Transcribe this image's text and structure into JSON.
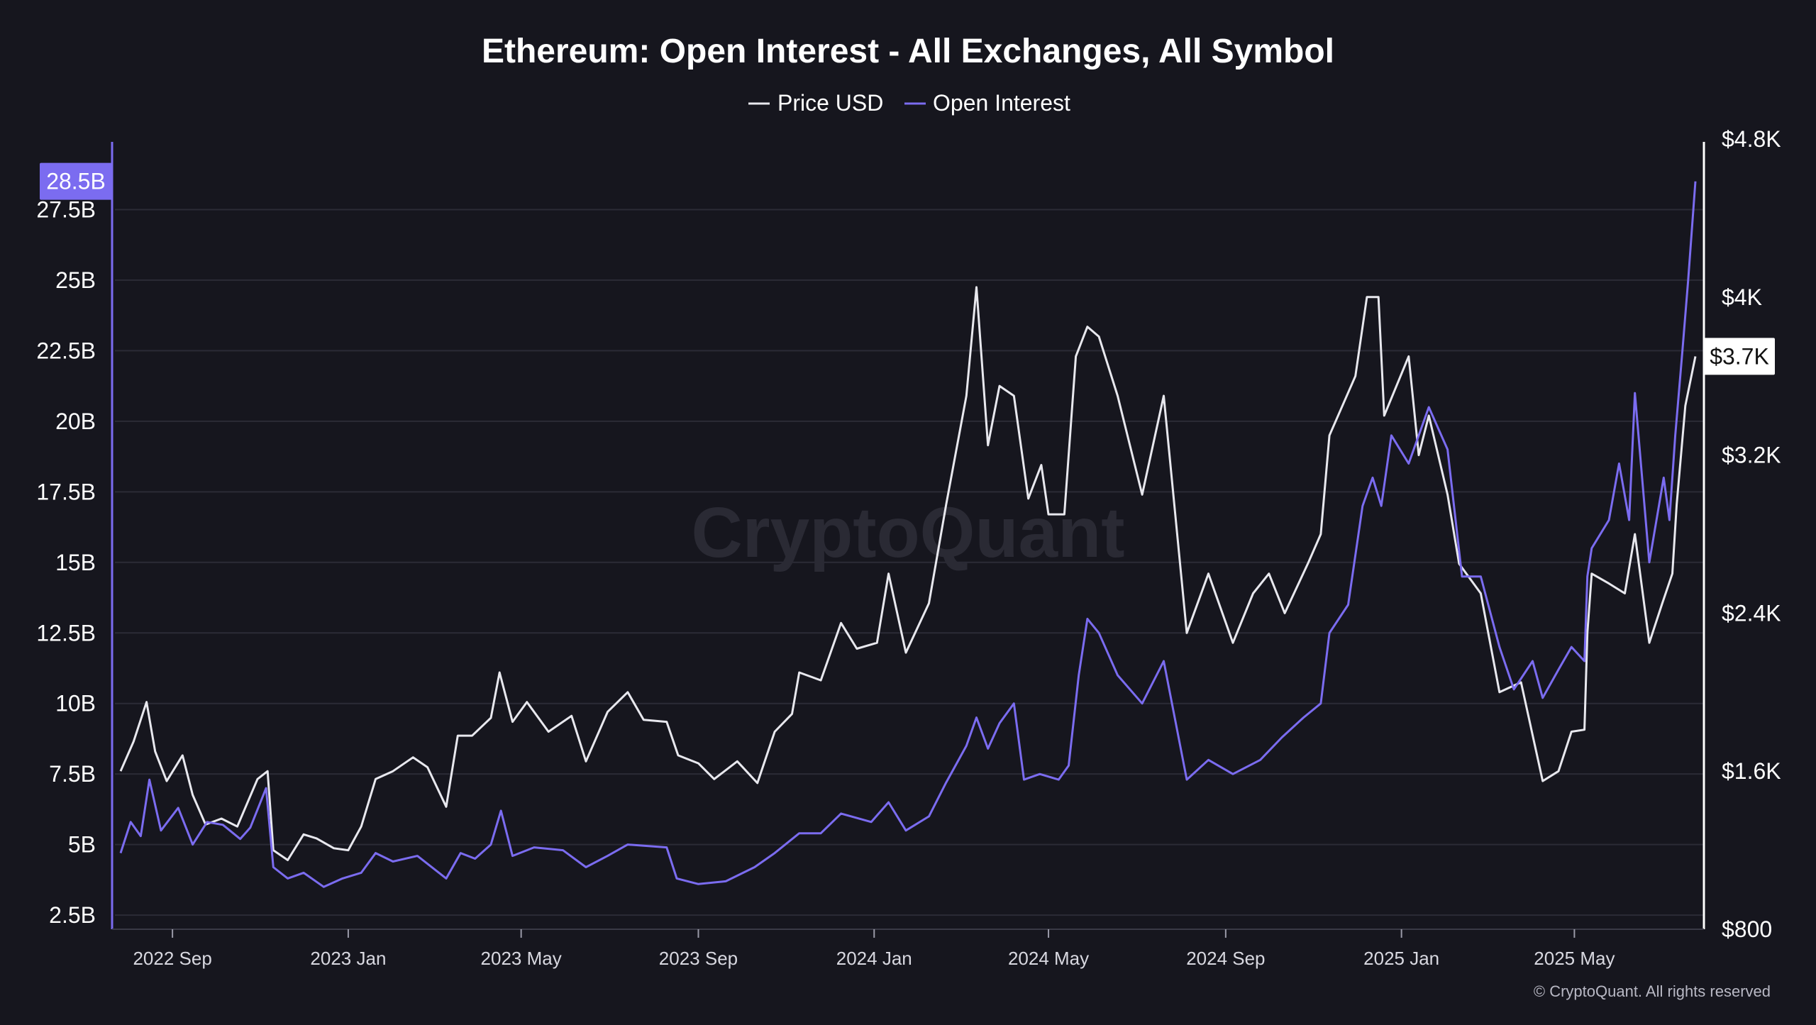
{
  "chart_data": {
    "type": "line",
    "title": "Ethereum: Open Interest - All Exchanges, All Symbol",
    "legend": {
      "placement": "top-center",
      "entries": [
        "Price USD",
        "Open Interest"
      ]
    },
    "watermark": "CryptoQuant",
    "copyright": "© CryptoQuant. All rights reserved",
    "colors": {
      "background": "#16161e",
      "grid": "#2b2b36",
      "price": "#e8e8ee",
      "open_interest": "#7b6cf0",
      "left_axis": "#7b6cf0",
      "right_axis": "#ffffff",
      "oi_badge_bg": "#7b6cf0",
      "price_badge_bg": "#ffffff"
    },
    "grid": true,
    "x_axis": {
      "range": [
        "2022-07-27",
        "2025-07-24"
      ],
      "ticks": [
        {
          "date": "2022-09-01",
          "label": "2022 Sep"
        },
        {
          "date": "2023-01-01",
          "label": "2023 Jan"
        },
        {
          "date": "2023-05-01",
          "label": "2023 May"
        },
        {
          "date": "2023-09-01",
          "label": "2023 Sep"
        },
        {
          "date": "2024-01-01",
          "label": "2024 Jan"
        },
        {
          "date": "2024-05-01",
          "label": "2024 May"
        },
        {
          "date": "2024-09-01",
          "label": "2024 Sep"
        },
        {
          "date": "2025-01-01",
          "label": "2025 Jan"
        },
        {
          "date": "2025-05-01",
          "label": "2025 May"
        }
      ]
    },
    "y_left": {
      "unit": "USD (billions)",
      "range": [
        2.0,
        30.0
      ],
      "ticks": [
        {
          "value": 2.5,
          "label": "2.5B"
        },
        {
          "value": 5,
          "label": "5B"
        },
        {
          "value": 7.5,
          "label": "7.5B"
        },
        {
          "value": 10,
          "label": "10B"
        },
        {
          "value": 12.5,
          "label": "12.5B"
        },
        {
          "value": 15,
          "label": "15B"
        },
        {
          "value": 17.5,
          "label": "17.5B"
        },
        {
          "value": 20,
          "label": "20B"
        },
        {
          "value": 22.5,
          "label": "22.5B"
        },
        {
          "value": 25,
          "label": "25B"
        },
        {
          "value": 27.5,
          "label": "27.5B"
        }
      ],
      "current_label": "28.5B",
      "current_value": 28.5
    },
    "y_right": {
      "unit": "USD",
      "range": [
        800,
        4800
      ],
      "ticks": [
        {
          "value": 800,
          "label": "$800"
        },
        {
          "value": 1600,
          "label": "$1.6K"
        },
        {
          "value": 2400,
          "label": "$2.4K"
        },
        {
          "value": 3200,
          "label": "$3.2K"
        },
        {
          "value": 4000,
          "label": "$4K"
        },
        {
          "value": 4800,
          "label": "$4.8K"
        }
      ],
      "current_label": "$3.7K",
      "current_value": 3700
    },
    "series": [
      {
        "name": "Price USD",
        "axis": "right",
        "points": [
          [
            "2022-07-27",
            1600
          ],
          [
            "2022-08-05",
            1750
          ],
          [
            "2022-08-14",
            1950
          ],
          [
            "2022-08-20",
            1700
          ],
          [
            "2022-08-28",
            1550
          ],
          [
            "2022-09-08",
            1680
          ],
          [
            "2022-09-15",
            1480
          ],
          [
            "2022-09-24",
            1330
          ],
          [
            "2022-10-05",
            1360
          ],
          [
            "2022-10-16",
            1320
          ],
          [
            "2022-10-30",
            1560
          ],
          [
            "2022-11-06",
            1600
          ],
          [
            "2022-11-10",
            1200
          ],
          [
            "2022-11-20",
            1150
          ],
          [
            "2022-12-01",
            1280
          ],
          [
            "2022-12-10",
            1260
          ],
          [
            "2022-12-22",
            1210
          ],
          [
            "2023-01-01",
            1200
          ],
          [
            "2023-01-10",
            1320
          ],
          [
            "2023-01-20",
            1560
          ],
          [
            "2023-02-01",
            1600
          ],
          [
            "2023-02-15",
            1670
          ],
          [
            "2023-02-25",
            1620
          ],
          [
            "2023-03-10",
            1420
          ],
          [
            "2023-03-18",
            1780
          ],
          [
            "2023-03-28",
            1780
          ],
          [
            "2023-04-10",
            1870
          ],
          [
            "2023-04-16",
            2100
          ],
          [
            "2023-04-25",
            1850
          ],
          [
            "2023-05-05",
            1950
          ],
          [
            "2023-05-20",
            1800
          ],
          [
            "2023-06-05",
            1880
          ],
          [
            "2023-06-15",
            1650
          ],
          [
            "2023-06-30",
            1900
          ],
          [
            "2023-07-14",
            2000
          ],
          [
            "2023-07-25",
            1860
          ],
          [
            "2023-08-10",
            1850
          ],
          [
            "2023-08-18",
            1680
          ],
          [
            "2023-09-01",
            1640
          ],
          [
            "2023-09-12",
            1560
          ],
          [
            "2023-09-28",
            1650
          ],
          [
            "2023-10-12",
            1540
          ],
          [
            "2023-10-24",
            1800
          ],
          [
            "2023-11-05",
            1890
          ],
          [
            "2023-11-10",
            2100
          ],
          [
            "2023-11-25",
            2060
          ],
          [
            "2023-12-09",
            2350
          ],
          [
            "2023-12-20",
            2220
          ],
          [
            "2024-01-03",
            2250
          ],
          [
            "2024-01-11",
            2600
          ],
          [
            "2024-01-23",
            2200
          ],
          [
            "2024-02-08",
            2450
          ],
          [
            "2024-02-20",
            2950
          ],
          [
            "2024-03-05",
            3500
          ],
          [
            "2024-03-12",
            4050
          ],
          [
            "2024-03-20",
            3250
          ],
          [
            "2024-03-28",
            3550
          ],
          [
            "2024-04-07",
            3500
          ],
          [
            "2024-04-17",
            2980
          ],
          [
            "2024-04-26",
            3150
          ],
          [
            "2024-05-01",
            2900
          ],
          [
            "2024-05-12",
            2900
          ],
          [
            "2024-05-20",
            3700
          ],
          [
            "2024-05-28",
            3850
          ],
          [
            "2024-06-05",
            3800
          ],
          [
            "2024-06-18",
            3500
          ],
          [
            "2024-07-05",
            3000
          ],
          [
            "2024-07-20",
            3500
          ],
          [
            "2024-08-05",
            2300
          ],
          [
            "2024-08-20",
            2600
          ],
          [
            "2024-09-06",
            2250
          ],
          [
            "2024-09-20",
            2500
          ],
          [
            "2024-10-01",
            2600
          ],
          [
            "2024-10-12",
            2400
          ],
          [
            "2024-10-28",
            2650
          ],
          [
            "2024-11-06",
            2800
          ],
          [
            "2024-11-12",
            3300
          ],
          [
            "2024-11-30",
            3600
          ],
          [
            "2024-12-08",
            4000
          ],
          [
            "2024-12-16",
            4000
          ],
          [
            "2024-12-20",
            3400
          ],
          [
            "2025-01-06",
            3700
          ],
          [
            "2025-01-13",
            3200
          ],
          [
            "2025-01-20",
            3400
          ],
          [
            "2025-02-02",
            3000
          ],
          [
            "2025-02-10",
            2650
          ],
          [
            "2025-02-25",
            2500
          ],
          [
            "2025-03-10",
            2000
          ],
          [
            "2025-03-25",
            2050
          ],
          [
            "2025-04-09",
            1550
          ],
          [
            "2025-04-20",
            1600
          ],
          [
            "2025-04-29",
            1800
          ],
          [
            "2025-05-08",
            1810
          ],
          [
            "2025-05-10",
            2300
          ],
          [
            "2025-05-13",
            2600
          ],
          [
            "2025-05-25",
            2550
          ],
          [
            "2025-06-05",
            2500
          ],
          [
            "2025-06-12",
            2800
          ],
          [
            "2025-06-22",
            2250
          ],
          [
            "2025-07-01",
            2450
          ],
          [
            "2025-07-08",
            2600
          ],
          [
            "2025-07-11",
            2950
          ],
          [
            "2025-07-17",
            3450
          ],
          [
            "2025-07-24",
            3700
          ]
        ]
      },
      {
        "name": "Open Interest",
        "axis": "left",
        "points": [
          [
            "2022-07-27",
            4.7
          ],
          [
            "2022-08-03",
            5.8
          ],
          [
            "2022-08-10",
            5.3
          ],
          [
            "2022-08-16",
            7.3
          ],
          [
            "2022-08-24",
            5.5
          ],
          [
            "2022-09-05",
            6.3
          ],
          [
            "2022-09-15",
            5.0
          ],
          [
            "2022-09-25",
            5.8
          ],
          [
            "2022-10-06",
            5.7
          ],
          [
            "2022-10-18",
            5.2
          ],
          [
            "2022-10-25",
            5.6
          ],
          [
            "2022-11-05",
            7.0
          ],
          [
            "2022-11-10",
            4.2
          ],
          [
            "2022-11-20",
            3.8
          ],
          [
            "2022-12-01",
            4.0
          ],
          [
            "2022-12-15",
            3.5
          ],
          [
            "2022-12-28",
            3.8
          ],
          [
            "2023-01-10",
            4.0
          ],
          [
            "2023-01-20",
            4.7
          ],
          [
            "2023-02-01",
            4.4
          ],
          [
            "2023-02-18",
            4.6
          ],
          [
            "2023-03-10",
            3.8
          ],
          [
            "2023-03-20",
            4.7
          ],
          [
            "2023-03-30",
            4.5
          ],
          [
            "2023-04-10",
            5.0
          ],
          [
            "2023-04-17",
            6.2
          ],
          [
            "2023-04-25",
            4.6
          ],
          [
            "2023-05-10",
            4.9
          ],
          [
            "2023-05-30",
            4.8
          ],
          [
            "2023-06-15",
            4.2
          ],
          [
            "2023-06-30",
            4.6
          ],
          [
            "2023-07-14",
            5.0
          ],
          [
            "2023-08-10",
            4.9
          ],
          [
            "2023-08-17",
            3.8
          ],
          [
            "2023-09-01",
            3.6
          ],
          [
            "2023-09-20",
            3.7
          ],
          [
            "2023-10-10",
            4.2
          ],
          [
            "2023-10-24",
            4.7
          ],
          [
            "2023-11-10",
            5.4
          ],
          [
            "2023-11-25",
            5.4
          ],
          [
            "2023-12-09",
            6.1
          ],
          [
            "2023-12-30",
            5.8
          ],
          [
            "2024-01-11",
            6.5
          ],
          [
            "2024-01-23",
            5.5
          ],
          [
            "2024-02-08",
            6.0
          ],
          [
            "2024-02-20",
            7.2
          ],
          [
            "2024-03-05",
            8.5
          ],
          [
            "2024-03-12",
            9.5
          ],
          [
            "2024-03-20",
            8.4
          ],
          [
            "2024-03-28",
            9.3
          ],
          [
            "2024-04-07",
            10.0
          ],
          [
            "2024-04-14",
            7.3
          ],
          [
            "2024-04-25",
            7.5
          ],
          [
            "2024-05-08",
            7.3
          ],
          [
            "2024-05-15",
            7.8
          ],
          [
            "2024-05-22",
            11.0
          ],
          [
            "2024-05-28",
            13.0
          ],
          [
            "2024-06-05",
            12.5
          ],
          [
            "2024-06-18",
            11.0
          ],
          [
            "2024-07-05",
            10.0
          ],
          [
            "2024-07-20",
            11.5
          ],
          [
            "2024-08-05",
            7.3
          ],
          [
            "2024-08-20",
            8.0
          ],
          [
            "2024-09-06",
            7.5
          ],
          [
            "2024-09-25",
            8.0
          ],
          [
            "2024-10-10",
            8.8
          ],
          [
            "2024-10-25",
            9.5
          ],
          [
            "2024-11-06",
            10.0
          ],
          [
            "2024-11-12",
            12.5
          ],
          [
            "2024-11-25",
            13.5
          ],
          [
            "2024-12-05",
            17.0
          ],
          [
            "2024-12-12",
            18.0
          ],
          [
            "2024-12-18",
            17.0
          ],
          [
            "2024-12-25",
            19.5
          ],
          [
            "2025-01-06",
            18.5
          ],
          [
            "2025-01-20",
            20.5
          ],
          [
            "2025-02-02",
            19.0
          ],
          [
            "2025-02-12",
            14.5
          ],
          [
            "2025-02-25",
            14.5
          ],
          [
            "2025-03-10",
            12.0
          ],
          [
            "2025-03-20",
            10.5
          ],
          [
            "2025-04-02",
            11.5
          ],
          [
            "2025-04-09",
            10.2
          ],
          [
            "2025-04-20",
            11.2
          ],
          [
            "2025-04-29",
            12.0
          ],
          [
            "2025-05-08",
            11.5
          ],
          [
            "2025-05-10",
            14.5
          ],
          [
            "2025-05-13",
            15.5
          ],
          [
            "2025-05-25",
            16.5
          ],
          [
            "2025-06-01",
            18.5
          ],
          [
            "2025-06-08",
            16.5
          ],
          [
            "2025-06-12",
            21.0
          ],
          [
            "2025-06-22",
            15.0
          ],
          [
            "2025-07-02",
            18.0
          ],
          [
            "2025-07-06",
            16.5
          ],
          [
            "2025-07-10",
            19.5
          ],
          [
            "2025-07-15",
            22.5
          ],
          [
            "2025-07-19",
            25.0
          ],
          [
            "2025-07-24",
            28.5
          ]
        ]
      }
    ]
  }
}
